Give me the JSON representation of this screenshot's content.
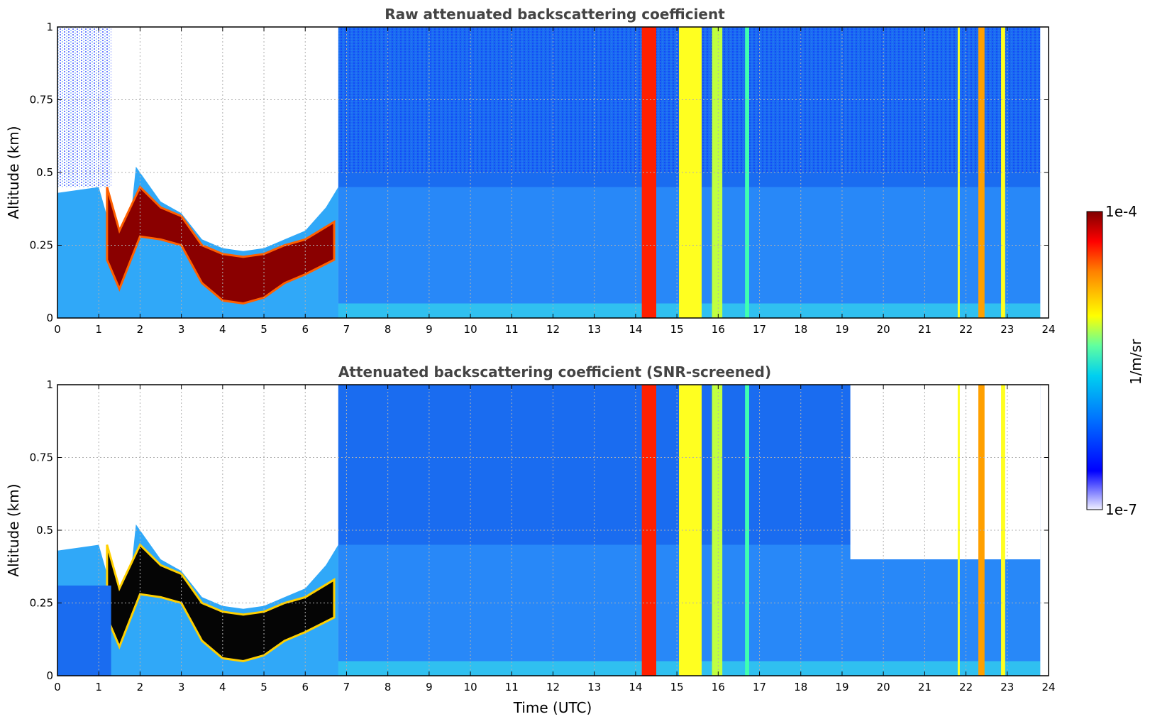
{
  "chart_data": [
    {
      "type": "heatmap",
      "title": "Raw attenuated backscattering coefficient",
      "xlabel": "",
      "ylabel": "Altitude (km)",
      "xlim": [
        0,
        24
      ],
      "ylim": [
        0,
        1
      ],
      "x_ticks": [
        "0",
        "1",
        "2",
        "3",
        "4",
        "5",
        "6",
        "7",
        "8",
        "9",
        "10",
        "11",
        "12",
        "13",
        "14",
        "15",
        "16",
        "17",
        "18",
        "19",
        "20",
        "21",
        "22",
        "23",
        "24"
      ],
      "y_ticks": [
        "0",
        "0.25",
        "0.5",
        "0.75",
        "1"
      ],
      "grid": true,
      "data_end_time": 23.8,
      "features": {
        "boundary_layer_top_km": [
          {
            "t": 0.0,
            "z": 0.43
          },
          {
            "t": 1.0,
            "z": 0.45
          },
          {
            "t": 1.3,
            "z": 0.3
          },
          {
            "t": 1.5,
            "z": 0.1
          },
          {
            "t": 1.7,
            "z": 0.25
          },
          {
            "t": 1.9,
            "z": 0.52
          },
          {
            "t": 2.5,
            "z": 0.4
          },
          {
            "t": 3.0,
            "z": 0.36
          },
          {
            "t": 3.5,
            "z": 0.27
          },
          {
            "t": 4.0,
            "z": 0.24
          },
          {
            "t": 4.5,
            "z": 0.23
          },
          {
            "t": 5.0,
            "z": 0.24
          },
          {
            "t": 5.5,
            "z": 0.27
          },
          {
            "t": 6.0,
            "z": 0.3
          },
          {
            "t": 6.5,
            "z": 0.38
          },
          {
            "t": 6.8,
            "z": 0.45
          }
        ],
        "aerosol_layer_km": [
          {
            "t": 1.2,
            "top": 0.45,
            "bottom": 0.2
          },
          {
            "t": 1.5,
            "top": 0.3,
            "bottom": 0.1
          },
          {
            "t": 2.0,
            "top": 0.45,
            "bottom": 0.28
          },
          {
            "t": 2.5,
            "top": 0.38,
            "bottom": 0.27
          },
          {
            "t": 3.0,
            "top": 0.35,
            "bottom": 0.25
          },
          {
            "t": 3.5,
            "top": 0.25,
            "bottom": 0.12
          },
          {
            "t": 4.0,
            "top": 0.22,
            "bottom": 0.06
          },
          {
            "t": 4.5,
            "top": 0.21,
            "bottom": 0.05
          },
          {
            "t": 5.0,
            "top": 0.22,
            "bottom": 0.07
          },
          {
            "t": 5.5,
            "top": 0.25,
            "bottom": 0.12
          },
          {
            "t": 6.0,
            "top": 0.27,
            "bottom": 0.15
          },
          {
            "t": 6.7,
            "top": 0.33,
            "bottom": 0.2
          }
        ],
        "precipitation_bands_utc": [
          {
            "start": 14.15,
            "end": 14.5,
            "level": "red"
          },
          {
            "start": 15.05,
            "end": 15.6,
            "level": "yellow"
          },
          {
            "start": 15.85,
            "end": 16.1,
            "level": "yellow-green"
          },
          {
            "start": 16.65,
            "end": 16.75,
            "level": "green"
          },
          {
            "start": 21.8,
            "end": 21.85,
            "level": "yellow"
          },
          {
            "start": 22.3,
            "end": 22.45,
            "level": "orange"
          },
          {
            "start": 22.85,
            "end": 22.95,
            "level": "yellow"
          }
        ]
      }
    },
    {
      "type": "heatmap",
      "title": "Attenuated backscattering coefficient (SNR-screened)",
      "xlabel": "Time (UTC)",
      "ylabel": "Altitude (km)",
      "xlim": [
        0,
        24
      ],
      "ylim": [
        0,
        1
      ],
      "x_ticks": [
        "0",
        "1",
        "2",
        "3",
        "4",
        "5",
        "6",
        "7",
        "8",
        "9",
        "10",
        "11",
        "12",
        "13",
        "14",
        "15",
        "16",
        "17",
        "18",
        "19",
        "20",
        "21",
        "22",
        "23",
        "24"
      ],
      "y_ticks": [
        "0",
        "0.25",
        "0.5",
        "0.75",
        "1"
      ],
      "grid": true,
      "data_end_time": 23.8,
      "features": {
        "screened_top_after_19_km": 0.4
      }
    }
  ],
  "colorbar": {
    "label": "1/m/sr",
    "max_label": "1e-4",
    "min_label": "1e-7",
    "scale": "log",
    "colors": [
      "#f0f0ff",
      "#0000ff",
      "#0080ff",
      "#00e0e0",
      "#80ff80",
      "#ffff00",
      "#ff8000",
      "#ff0000",
      "#800000"
    ]
  }
}
